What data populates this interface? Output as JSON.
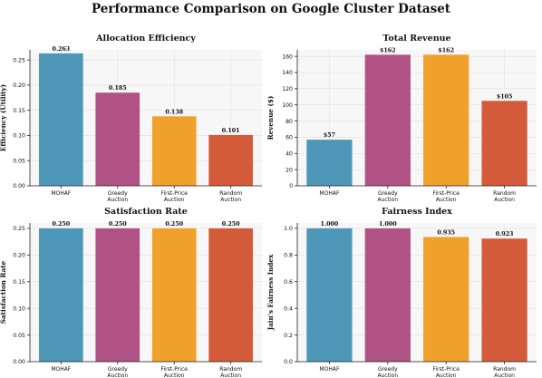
{
  "title": "Performance Comparison on Google Cluster Dataset",
  "chart_data": [
    {
      "type": "bar",
      "title": "Allocation Efficiency",
      "ylabel": "Efficiency (Utility)",
      "categories": [
        "MOHAF",
        "Greedy Auction",
        "First-Price Auction",
        "Random Auction"
      ],
      "values": [
        0.263,
        0.185,
        0.138,
        0.101
      ],
      "data_labels": [
        "0.263",
        "0.185",
        "0.138",
        "0.101"
      ],
      "ylim": [
        0,
        0.27
      ],
      "yticks": [
        0.0,
        0.05,
        0.1,
        0.15,
        0.2,
        0.25
      ],
      "ytick_labels": [
        "0.00",
        "0.05",
        "0.10",
        "0.15",
        "0.20",
        "0.25"
      ],
      "colors": [
        "#4f97b8",
        "#b05284",
        "#f0a02c",
        "#d35b3a"
      ],
      "grid": true
    },
    {
      "type": "bar",
      "title": "Total Revenue",
      "ylabel": "Revenue ($)",
      "categories": [
        "MOHAF",
        "Greedy Auction",
        "First-Price Auction",
        "Random Auction"
      ],
      "values": [
        57,
        162,
        162,
        105
      ],
      "data_labels": [
        "$57",
        "$162",
        "$162",
        "$105"
      ],
      "ylim": [
        0,
        168
      ],
      "yticks": [
        0,
        20,
        40,
        60,
        80,
        100,
        120,
        140,
        160
      ],
      "ytick_labels": [
        "0",
        "20",
        "40",
        "60",
        "80",
        "100",
        "120",
        "140",
        "160"
      ],
      "colors": [
        "#4f97b8",
        "#b05284",
        "#f0a02c",
        "#d35b3a"
      ],
      "grid": true
    },
    {
      "type": "bar",
      "title": "Satisfaction Rate",
      "ylabel": "Satisfaction Rate",
      "categories": [
        "MOHAF",
        "Greedy Auction",
        "First-Price Auction",
        "Random Auction"
      ],
      "values": [
        0.25,
        0.25,
        0.25,
        0.25
      ],
      "data_labels": [
        "0.250",
        "0.250",
        "0.250",
        "0.250"
      ],
      "ylim": [
        0,
        0.26
      ],
      "yticks": [
        0.0,
        0.05,
        0.1,
        0.15,
        0.2,
        0.25
      ],
      "ytick_labels": [
        "0.00",
        "0.05",
        "0.10",
        "0.15",
        "0.20",
        "0.25"
      ],
      "colors": [
        "#4f97b8",
        "#b05284",
        "#f0a02c",
        "#d35b3a"
      ],
      "grid": true
    },
    {
      "type": "bar",
      "title": "Fairness Index",
      "ylabel": "Jain's Fairness Index",
      "categories": [
        "MOHAF",
        "Greedy Auction",
        "First-Price Auction",
        "Random Auction"
      ],
      "values": [
        1.0,
        1.0,
        0.935,
        0.923
      ],
      "data_labels": [
        "1.000",
        "1.000",
        "0.935",
        "0.923"
      ],
      "ylim": [
        0,
        1.04
      ],
      "yticks": [
        0.0,
        0.2,
        0.4,
        0.6,
        0.8,
        1.0
      ],
      "ytick_labels": [
        "0.0",
        "0.2",
        "0.4",
        "0.6",
        "0.8",
        "1.0"
      ],
      "colors": [
        "#4f97b8",
        "#b05284",
        "#f0a02c",
        "#d35b3a"
      ],
      "grid": true
    }
  ]
}
